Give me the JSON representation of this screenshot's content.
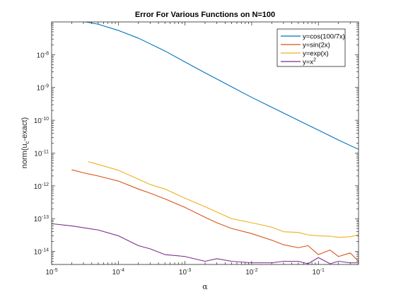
{
  "chart_data": {
    "type": "line",
    "title": "Error For Various Functions on N=100",
    "xlabel": "α",
    "ylabel": "norm(u_c-exact)",
    "xscale": "log",
    "yscale": "log",
    "xlim": [
      1e-05,
      0.4
    ],
    "ylim": [
      4e-15,
      1e-07
    ],
    "grid": false,
    "legend_position": "top-right",
    "x_ticks": [
      {
        "value": 1e-05,
        "base": "10",
        "exp": "-5"
      },
      {
        "value": 0.0001,
        "base": "10",
        "exp": "-4"
      },
      {
        "value": 0.001,
        "base": "10",
        "exp": "-3"
      },
      {
        "value": 0.01,
        "base": "10",
        "exp": "-2"
      },
      {
        "value": 0.1,
        "base": "10",
        "exp": "-1"
      }
    ],
    "y_ticks": [
      {
        "value": 1e-14,
        "base": "10",
        "exp": "-14"
      },
      {
        "value": 1e-13,
        "base": "10",
        "exp": "-13"
      },
      {
        "value": 1e-12,
        "base": "10",
        "exp": "-12"
      },
      {
        "value": 1e-11,
        "base": "10",
        "exp": "-11"
      },
      {
        "value": 1e-10,
        "base": "10",
        "exp": "-10"
      },
      {
        "value": 1e-09,
        "base": "10",
        "exp": "-9"
      },
      {
        "value": 1e-08,
        "base": "10",
        "exp": "-8"
      }
    ],
    "series": [
      {
        "name": "y=cos(100/7x)",
        "color": "#0072BD",
        "x": [
          1e-05,
          2e-05,
          5e-05,
          0.0001,
          0.0002,
          0.0005,
          0.001,
          0.002,
          0.005,
          0.01,
          0.02,
          0.05,
          0.1,
          0.2,
          0.4
        ],
        "y": [
          1.3e-07,
          1.2e-07,
          8.5e-08,
          5.5e-08,
          3.2e-08,
          1.3e-08,
          6e-09,
          2.8e-09,
          1.05e-09,
          5e-10,
          2.5e-10,
          1e-10,
          5e-11,
          2.5e-11,
          1.3e-11
        ]
      },
      {
        "name": "y=sin(2x)",
        "color": "#D95319",
        "x": [
          2e-05,
          3e-05,
          5e-05,
          0.0001,
          0.0002,
          0.0003,
          0.0005,
          0.001,
          0.002,
          0.003,
          0.005,
          0.01,
          0.02,
          0.03,
          0.05,
          0.07,
          0.1,
          0.15,
          0.2,
          0.3,
          0.4
        ],
        "y": [
          3.1e-12,
          2.5e-12,
          2e-12,
          1.4e-12,
          8e-13,
          6e-13,
          4e-13,
          2.2e-13,
          1.1e-13,
          7.5e-14,
          5e-14,
          3.5e-14,
          2.2e-14,
          1.6e-14,
          1.3e-14,
          1.5e-14,
          8e-15,
          1.1e-14,
          7e-15,
          9e-15,
          5e-15
        ]
      },
      {
        "name": "y=exp(x)",
        "color": "#EDB120",
        "x": [
          3.5e-05,
          5e-05,
          0.0001,
          0.0002,
          0.0003,
          0.0005,
          0.001,
          0.002,
          0.003,
          0.005,
          0.01,
          0.02,
          0.03,
          0.05,
          0.07,
          0.1,
          0.15,
          0.2,
          0.3,
          0.4
        ],
        "y": [
          5.5e-12,
          4.5e-12,
          3e-12,
          1.6e-12,
          1.1e-12,
          8e-13,
          4.2e-13,
          2.3e-13,
          1.6e-13,
          1e-13,
          7.5e-14,
          5.5e-14,
          4e-14,
          3.8e-14,
          3.2e-14,
          3e-14,
          2.9e-14,
          2.7e-14,
          2.8e-14,
          3.2e-14
        ]
      },
      {
        "name": "y=x²",
        "color": "#7E2F8E",
        "x": [
          1e-05,
          2e-05,
          5e-05,
          0.0001,
          0.0002,
          0.0003,
          0.0005,
          0.001,
          0.002,
          0.003,
          0.005,
          0.01,
          0.02,
          0.03,
          0.05,
          0.07,
          0.1,
          0.15,
          0.2,
          0.3,
          0.4
        ],
        "y": [
          7e-14,
          6e-14,
          4.5e-14,
          3e-14,
          1.5e-14,
          1.2e-14,
          8e-15,
          7e-15,
          5e-15,
          6e-15,
          5e-15,
          4.5e-15,
          4.5e-15,
          5e-15,
          5e-15,
          4.2e-15,
          6.5e-15,
          4.2e-15,
          5e-15,
          4.5e-15,
          4.5e-15
        ]
      }
    ],
    "legend_entries": [
      {
        "label": "y=cos(100/7x)",
        "base": "y=cos(100/7x)",
        "sup": "",
        "color": "#0072BD"
      },
      {
        "label": "y=sin(2x)",
        "base": "y=sin(2x)",
        "sup": "",
        "color": "#D95319"
      },
      {
        "label": "y=exp(x)",
        "base": "y=exp(x)",
        "sup": "",
        "color": "#EDB120"
      },
      {
        "label": "y=x²",
        "base": "y=x",
        "sup": "2",
        "color": "#7E2F8E"
      }
    ],
    "ylabel_parts": {
      "pre": "norm(u",
      "sub": "c",
      "post": "-exact)"
    }
  }
}
